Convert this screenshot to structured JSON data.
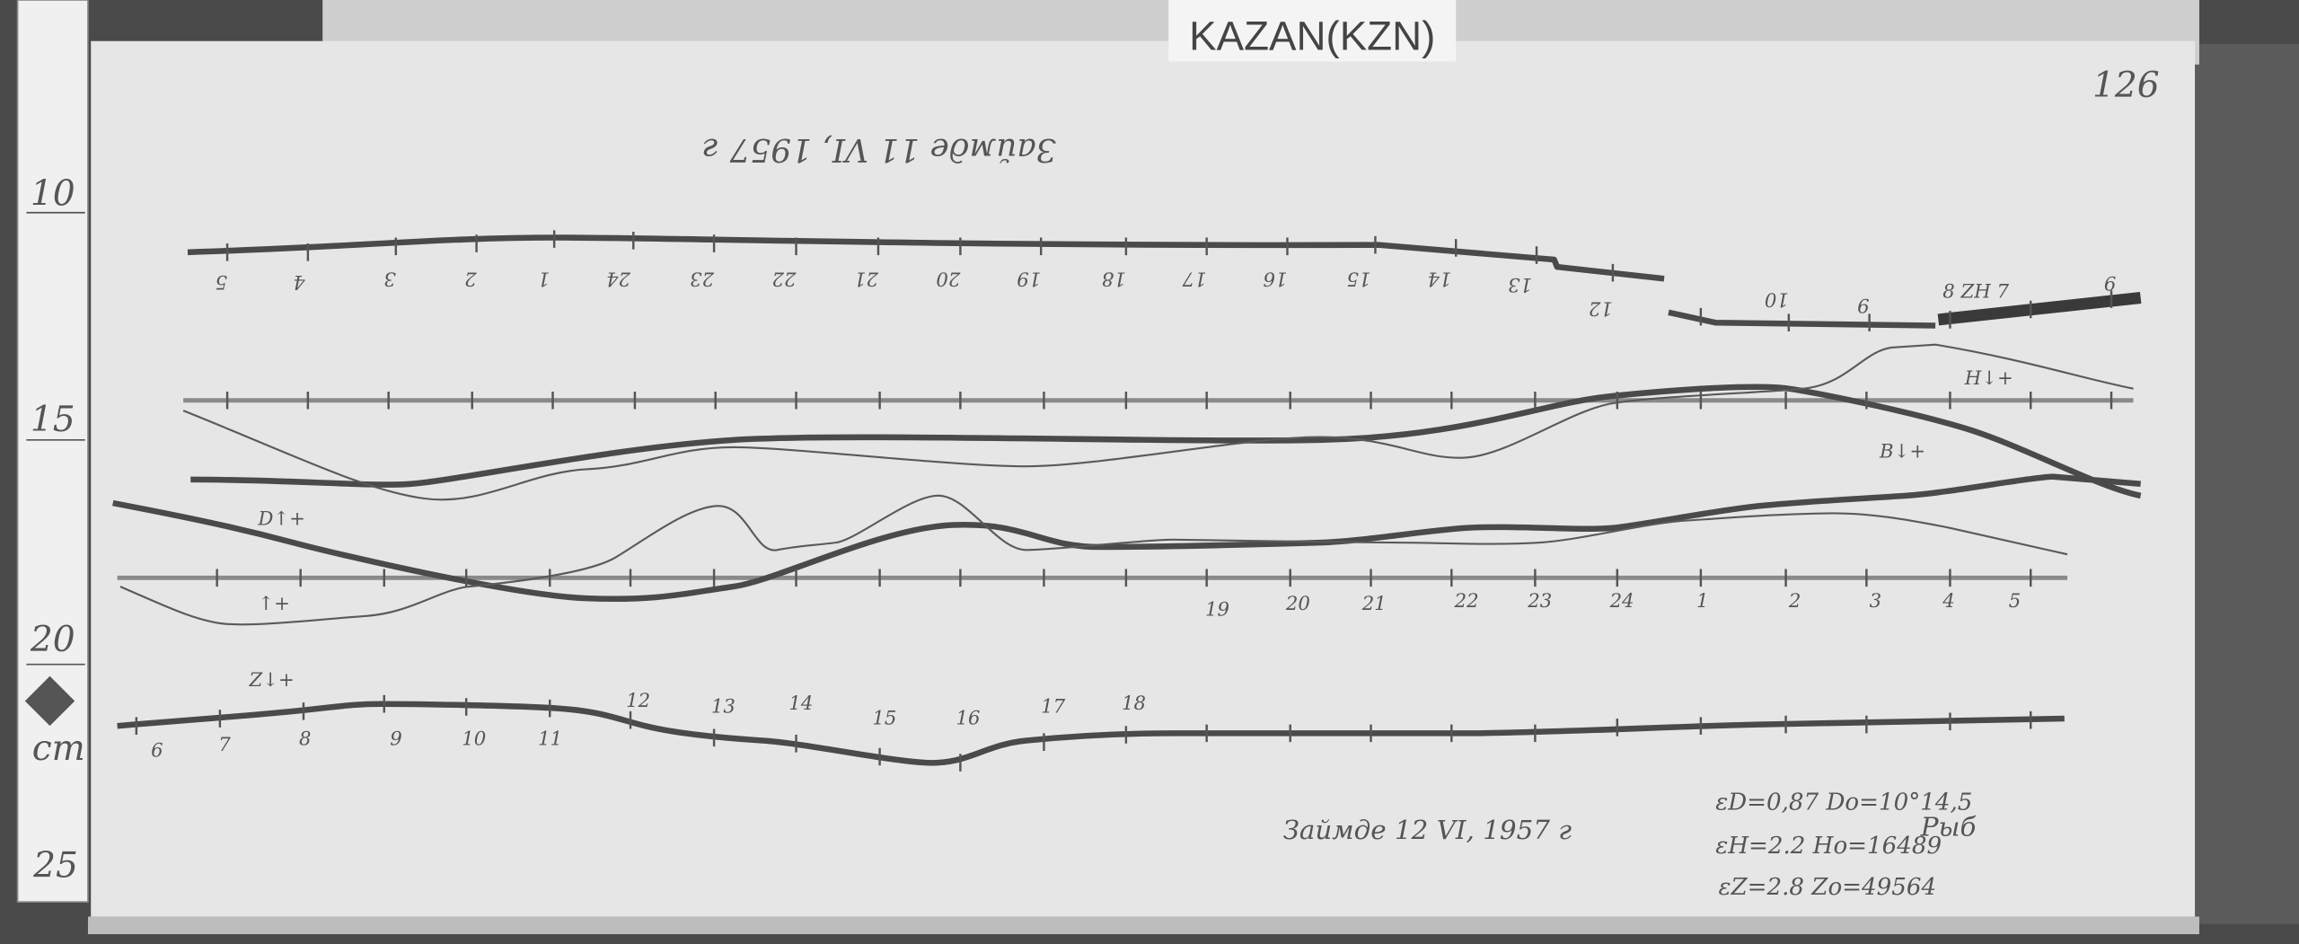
{
  "station_label": "KAZAN(KZN)",
  "sheet_number": "126",
  "date_top_inverted": "Займде 11 VI, 1957 г",
  "date_bottom": "Займде 12 VI, 1957 г",
  "parameters": [
    "εD=0,87  Do=10°14,5",
    "εH=2.2  Ho=16489",
    "εZ=2.8  Zo=49564"
  ],
  "signature": "Рыб",
  "ruler": {
    "numbers": [
      "10",
      "15",
      "20",
      "25"
    ],
    "unit": "cm"
  },
  "trace_labels": {
    "z": "Z↓+",
    "d": "D↑+",
    "d2": "↑+",
    "h": "H↓+",
    "b": "B↓+",
    "zh": "8 ZH 7"
  },
  "hours_top": [
    "5",
    "4",
    "3",
    "2",
    "1",
    "24",
    "23",
    "22",
    "21",
    "20",
    "19",
    "18",
    "17",
    "16",
    "15",
    "14",
    "13",
    "12",
    "10",
    "9",
    "6"
  ],
  "hours_middle": [
    "19",
    "20",
    "21",
    "22",
    "23",
    "24",
    "1",
    "2",
    "3",
    "4",
    "5"
  ],
  "hours_bottom_low": [
    "6",
    "7",
    "8",
    "9",
    "10",
    "11"
  ],
  "hours_bottom_high": [
    "12",
    "13",
    "14",
    "15",
    "16",
    "17",
    "18"
  ],
  "colors": {
    "paper": "#e6e6e6",
    "trace": "#4a4a4a",
    "background": "#3a3a3a"
  }
}
